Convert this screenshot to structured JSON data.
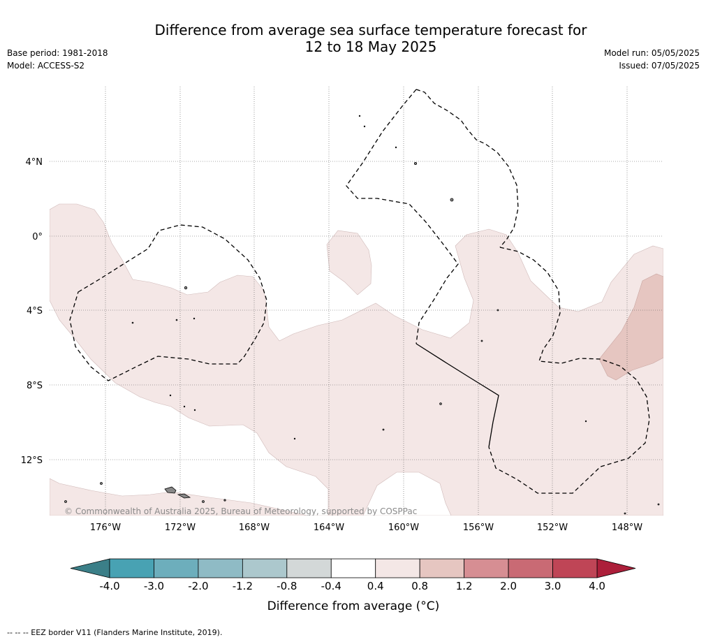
{
  "header": {
    "title_line1": "Difference from average sea surface temperature forecast for",
    "title_line2": "12 to 18 May 2025",
    "base_period": "Base period: 1981-2018",
    "model": "Model: ACCESS-S2",
    "model_run": "Model run: 05/05/2025",
    "issued": "Issued: 07/05/2025"
  },
  "map": {
    "lat_labels": [
      "4°N",
      "0°",
      "4°S",
      "8°S",
      "12°S"
    ],
    "lon_labels": [
      "176°W",
      "172°W",
      "168°W",
      "164°W",
      "160°W",
      "156°W",
      "152°W",
      "148°W"
    ],
    "copyright": "© Commonwealth of Australia 2025, Bureau of Meteorology, supported by COSPPac",
    "colors": {
      "anomaly_0_4_to_0_8": "#f4e7e6",
      "anomaly_0_8_to_1_2": "#e6c6c1",
      "land": "#888888"
    }
  },
  "colorbar": {
    "ticks": [
      "-4.0",
      "-3.0",
      "-2.0",
      "-1.2",
      "-0.8",
      "-0.4",
      "0.4",
      "0.8",
      "1.2",
      "2.0",
      "3.0",
      "4.0"
    ],
    "colors": [
      "#48a2b3",
      "#6daebc",
      "#8fbbc5",
      "#acc8cd",
      "#d3d8d8",
      "#ffffff",
      "#f4e7e6",
      "#e6c6c1",
      "#d68e93",
      "#c96a74",
      "#bf4556"
    ],
    "under_color": "#3b7f88",
    "over_color": "#ac1f3a",
    "label": "Difference from average (°C)"
  },
  "legend": {
    "eez": "-- -- -- EEZ border V11 (Flanders Marine Institute, 2019)."
  }
}
